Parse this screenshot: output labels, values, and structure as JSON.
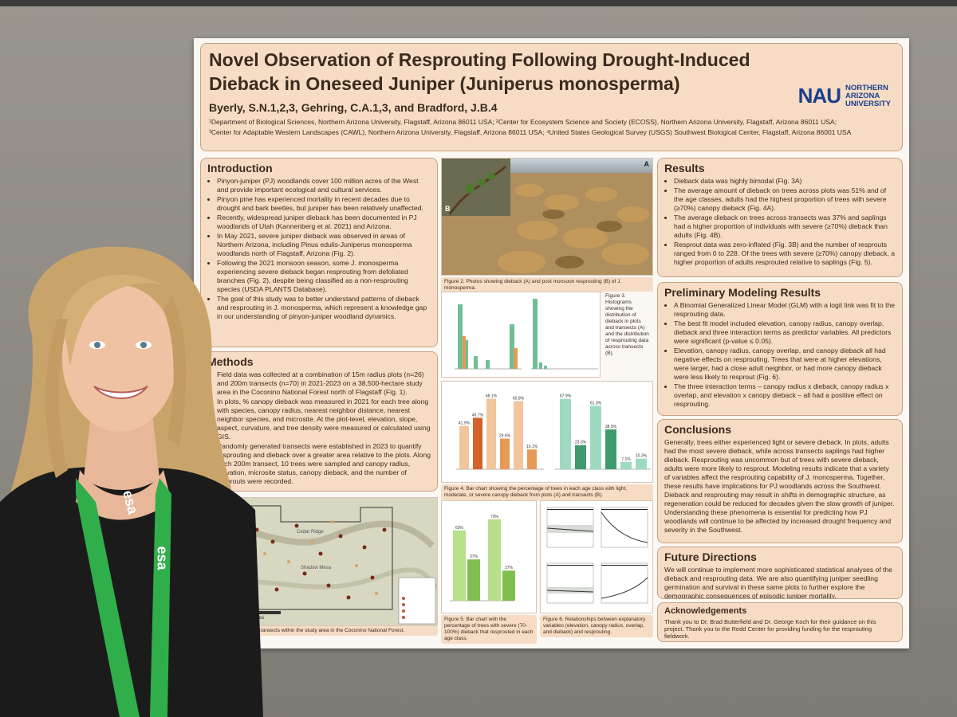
{
  "poster": {
    "title_line1": "Novel Observation of Resprouting Following Drought-Induced",
    "title_line2": "Dieback in Oneseed Juniper (Juniperus monosperma)",
    "authors": "Byerly, S.N.1,2,3, Gehring, C.A.1,3, and Bradford, J.B.4",
    "affil_line1": "¹Department of Biological Sciences, Northern Arizona University, Flagstaff, Arizona 86011 USA; ²Center for Ecosystem Science and Society (ECOSS), Northern Arizona University, Flagstaff, Arizona 86011 USA;",
    "affil_line2": "³Center for Adaptable Western Landscapes (CAWL), Northern Arizona University, Flagstaff, Arizona 86011 USA; ⁴United States Geological Survey (USGS) Southwest Biological Center, Flagstaff, Arizona 86001 USA",
    "logo_mark": "NAU",
    "logo_text": [
      "NORTHERN",
      "ARIZONA",
      "UNIVERSITY"
    ]
  },
  "introduction": {
    "heading": "Introduction",
    "bullets": [
      "Pinyon-juniper (PJ) woodlands cover 100 million acres of the West and provide important ecological and cultural services.",
      "Pinyon pine has experienced mortality in recent decades due to drought and bark beetles, but juniper has been relatively unaffected.",
      "Recently, widespread juniper dieback has been documented in PJ woodlands of Utah (Kannenberg et al. 2021) and Arizona.",
      "In May 2021, severe juniper dieback was observed in areas of Northern Arizona, including Pinus edulis-Juniperus monosperma woodlands north of Flagstaff, Arizona (Fig. 2).",
      "Following the 2021 monsoon season, some J. monosperma experiencing severe dieback began resprouting from defoliated branches (Fig. 2), despite being classified as a non-resprouting species (USDA PLANTS Database).",
      "The goal of this study was to better understand patterns of dieback and resprouting in J. monosperma, which represent a knowledge gap in our understanding of pinyon-juniper woodland dynamics."
    ]
  },
  "methods": {
    "heading": "Methods",
    "bullets": [
      "Field data was collected at a combination of 15m radius plots (n=26) and 200m transects (n=70) in 2021-2023 on a 38,500-hectare study area in the Coconino National Forest north of Flagstaff (Fig. 1).",
      "In plots, % canopy dieback was measured in 2021 for each tree along with species, canopy radius, nearest neighbor distance, nearest neighbor species, and microsite. At the plot-level, elevation, slope, aspect, curvature, and tree density were measured or calculated using GIS.",
      "Randomly generated transects were established in 2023 to quantify resprouting and dieback over a greater area relative to the plots. Along each 200m transect, 10 trees were sampled and canopy radius, elevation, microsite status, canopy dieback, and the number of resprouts were recorded."
    ]
  },
  "figures": {
    "fig1_caption": "Fig. 1. Map of plots and transects within the study area in the Coconino National Forest.",
    "fig2_caption": "Figure 2. Photos showing dieback (A) and post monsoon resprouting (B) of J. monosperma.",
    "fig3_caption": "Figure 3. Histograms showing the distribution of dieback in plots and transects (A) and the distribution of resprouting data across transects (B).",
    "fig4_caption": "Figure 4. Bar chart showing the percentage of trees in each age class with light, moderate, or severe canopy dieback from plots (A) and transects (B).",
    "fig5_caption": "Figure 5. Bar chart with the percentage of trees with severe (70-100%) dieback that resprouted in each age class.",
    "fig6_caption": "Figure 6. Relationships between explanatory variables (elevation, canopy radius, overlap, and dieback) and resprouting.",
    "photo_label_a": "A",
    "photo_label_b": "B",
    "map_labels": [
      "Cedar Ridge",
      "Shadow Mesa",
      "2 Miles"
    ],
    "fig4a_values": [
      "41.9%",
      "49.7%",
      "68.1%",
      "29.6%",
      "65.8%",
      "19.1%"
    ],
    "fig4b_values": [
      "67.9%",
      "23.3%",
      "61.3%",
      "38.5%",
      "7.1%",
      "10.3%"
    ],
    "fig5_values": [
      "63%",
      "37%",
      "73%",
      "27%"
    ]
  },
  "results": {
    "heading": "Results",
    "bullets": [
      "Dieback data was highly bimodal (Fig. 3A)",
      "The average amount of dieback on trees across plots was 51% and of the age classes, adults had the highest proportion of trees with severe (≥70%) canopy dieback (Fig. 4A).",
      "The average dieback on trees across transects was 37% and saplings had a higher proportion of individuals with severe (≥70%) dieback than adults (Fig. 4B).",
      "Resprout data was zero-inflated (Fig. 3B) and the number of resprouts ranged from 0 to 228. Of the trees with severe (≥70%) canopy dieback, a higher proportion of adults resprouted relative to saplings (Fig. 5)."
    ]
  },
  "modeling": {
    "heading": "Preliminary Modeling Results",
    "bullets": [
      "A Binomial Generalized Linear Model (GLM) with a logit link was fit to the resprouting data.",
      "The best fit model included elevation, canopy radius, canopy overlap, dieback and three interaction terms as predictor variables. All predictors were significant (p-value ≤ 0.05).",
      "Elevation, canopy radius, canopy overlap, and canopy dieback all had negative effects on resprouting. Trees that were at higher elevations, were larger, had a close adult neighbor, or had more canopy dieback were less likely to resprout (Fig. 6).",
      "The three interaction terms – canopy radius x dieback, canopy radius x overlap, and elevation x canopy dieback – all had a positive effect on resprouting."
    ]
  },
  "conclusions": {
    "heading": "Conclusions",
    "text": "Generally, trees either experienced light or severe dieback. In plots, adults had the most severe dieback, while across transects saplings had higher dieback. Resprouting was uncommon but of trees with severe dieback, adults were more likely to resprout. Modeling results indicate that a variety of variables affect the resprouting capability of J. monosperma. Together, these results have implications for PJ woodlands across the Southwest. Dieback and resprouting may result in shifts in demographic structure, as regeneration could be reduced for decades given the slow growth of juniper. Understanding these phenomena is essential for predicting how PJ woodlands will continue to be affected by increased drought frequency and severity in the Southwest."
  },
  "future": {
    "heading": "Future Directions",
    "text": "We will continue to implement more sophisticated statistical analyses of the dieback and resprouting data. We are also quantifying juniper seedling germination and survival in these same plots to further explore the demographic consequences of episodic juniper mortality."
  },
  "acknowledgements": {
    "heading": "Acknowledgements",
    "text": "Thank you to Dr. Brad Butterfield and Dr. George Koch for their guidance on this project. Thank you to the Redd Center for providing funding for the resprouting fieldwork."
  },
  "lanyard_text": "esa",
  "colors": {
    "panel": "#f6dcc4",
    "lanyard": "#2fae4a",
    "nau_blue": "#1b3f8b",
    "bar_light": "#f2c59c",
    "bar_moderate": "#e59a57",
    "bar_severe": "#d4622a",
    "bar_green_light": "#9fdac0",
    "bar_green_dark": "#3f9a6c"
  }
}
